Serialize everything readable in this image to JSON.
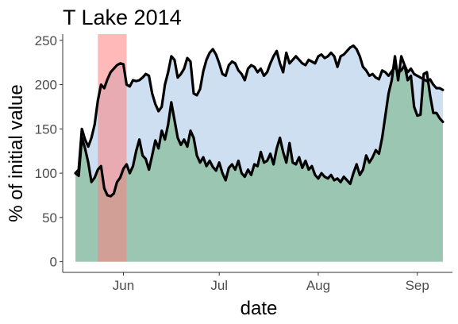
{
  "chart_data": {
    "type": "area",
    "title": "T Lake 2014",
    "xlabel": "date",
    "ylabel": "% of initial value",
    "x_ticks": [
      "Jun",
      "Jul",
      "Aug",
      "Sep"
    ],
    "y_ticks": [
      0,
      50,
      100,
      150,
      200,
      250
    ],
    "xlim": [
      "2014-05-13",
      "2014-09-12"
    ],
    "ylim": [
      -12,
      257
    ],
    "grid": false,
    "highlight": {
      "start": "2014-05-24",
      "end": "2014-06-02",
      "color": "#ff7f7f"
    },
    "fill_colors": {
      "lower_area": "#9bc6b1",
      "band": "#cddff0",
      "line": "#000000"
    },
    "series": [
      {
        "values": [
          [
            "2014-05-17",
            100
          ],
          [
            "2014-05-18",
            97
          ],
          [
            "2014-05-19",
            140
          ],
          [
            "2014-05-20",
            128
          ],
          [
            "2014-05-21",
            112
          ],
          [
            "2014-05-22",
            90
          ],
          [
            "2014-05-23",
            95
          ],
          [
            "2014-05-24",
            104
          ],
          [
            "2014-05-25",
            108
          ],
          [
            "2014-05-26",
            83
          ],
          [
            "2014-05-27",
            75
          ],
          [
            "2014-05-28",
            74
          ],
          [
            "2014-05-29",
            77
          ],
          [
            "2014-05-30",
            90
          ],
          [
            "2014-05-31",
            95
          ],
          [
            "2014-06-01",
            105
          ],
          [
            "2014-06-02",
            110
          ],
          [
            "2014-06-03",
            100
          ],
          [
            "2014-06-04",
            108
          ],
          [
            "2014-06-05",
            125
          ],
          [
            "2014-06-06",
            138
          ],
          [
            "2014-06-07",
            120
          ],
          [
            "2014-06-08",
            116
          ],
          [
            "2014-06-09",
            104
          ],
          [
            "2014-06-10",
            120
          ],
          [
            "2014-06-11",
            137
          ],
          [
            "2014-06-12",
            128
          ],
          [
            "2014-06-13",
            148
          ],
          [
            "2014-06-14",
            138
          ],
          [
            "2014-06-15",
            155
          ],
          [
            "2014-06-16",
            180
          ],
          [
            "2014-06-17",
            160
          ],
          [
            "2014-06-18",
            140
          ],
          [
            "2014-06-19",
            132
          ],
          [
            "2014-06-20",
            138
          ],
          [
            "2014-06-21",
            130
          ],
          [
            "2014-06-22",
            148
          ],
          [
            "2014-06-23",
            140
          ],
          [
            "2014-06-24",
            120
          ],
          [
            "2014-06-25",
            112
          ],
          [
            "2014-06-26",
            118
          ],
          [
            "2014-06-27",
            108
          ],
          [
            "2014-06-28",
            114
          ],
          [
            "2014-06-29",
            107
          ],
          [
            "2014-06-30",
            103
          ],
          [
            "2014-07-01",
            112
          ],
          [
            "2014-07-02",
            100
          ],
          [
            "2014-07-03",
            92
          ],
          [
            "2014-07-04",
            106
          ],
          [
            "2014-07-05",
            110
          ],
          [
            "2014-07-06",
            104
          ],
          [
            "2014-07-07",
            114
          ],
          [
            "2014-07-08",
            100
          ],
          [
            "2014-07-09",
            96
          ],
          [
            "2014-07-10",
            104
          ],
          [
            "2014-07-11",
            98
          ],
          [
            "2014-07-12",
            110
          ],
          [
            "2014-07-13",
            108
          ],
          [
            "2014-07-14",
            124
          ],
          [
            "2014-07-15",
            112
          ],
          [
            "2014-07-16",
            114
          ],
          [
            "2014-07-17",
            122
          ],
          [
            "2014-07-18",
            110
          ],
          [
            "2014-07-19",
            128
          ],
          [
            "2014-07-20",
            140
          ],
          [
            "2014-07-21",
            124
          ],
          [
            "2014-07-22",
            112
          ],
          [
            "2014-07-23",
            134
          ],
          [
            "2014-07-24",
            112
          ],
          [
            "2014-07-25",
            110
          ],
          [
            "2014-07-26",
            118
          ],
          [
            "2014-07-27",
            106
          ],
          [
            "2014-07-28",
            114
          ],
          [
            "2014-07-29",
            104
          ],
          [
            "2014-07-30",
            108
          ],
          [
            "2014-07-31",
            98
          ],
          [
            "2014-08-01",
            94
          ],
          [
            "2014-08-02",
            100
          ],
          [
            "2014-08-03",
            96
          ],
          [
            "2014-08-04",
            94
          ],
          [
            "2014-08-05",
            98
          ],
          [
            "2014-08-06",
            92
          ],
          [
            "2014-08-07",
            94
          ],
          [
            "2014-08-08",
            90
          ],
          [
            "2014-08-09",
            96
          ],
          [
            "2014-08-10",
            92
          ],
          [
            "2014-08-11",
            88
          ],
          [
            "2014-08-12",
            100
          ],
          [
            "2014-08-13",
            110
          ],
          [
            "2014-08-14",
            98
          ],
          [
            "2014-08-15",
            104
          ],
          [
            "2014-08-16",
            120
          ],
          [
            "2014-08-17",
            112
          ],
          [
            "2014-08-18",
            118
          ],
          [
            "2014-08-19",
            126
          ],
          [
            "2014-08-20",
            122
          ],
          [
            "2014-08-21",
            140
          ],
          [
            "2014-08-22",
            165
          ],
          [
            "2014-08-23",
            190
          ],
          [
            "2014-08-24",
            205
          ],
          [
            "2014-08-25",
            232
          ],
          [
            "2014-08-26",
            205
          ],
          [
            "2014-08-27",
            232
          ],
          [
            "2014-08-28",
            222
          ],
          [
            "2014-08-29",
            205
          ],
          [
            "2014-08-30",
            210
          ],
          [
            "2014-08-31",
            175
          ],
          [
            "2014-09-01",
            165
          ],
          [
            "2014-09-02",
            166
          ],
          [
            "2014-09-03",
            212
          ],
          [
            "2014-09-04",
            214
          ],
          [
            "2014-09-05",
            188
          ],
          [
            "2014-09-06",
            168
          ],
          [
            "2014-09-07",
            168
          ],
          [
            "2014-09-08",
            162
          ],
          [
            "2014-09-09",
            158
          ]
        ]
      },
      {
        "values": [
          [
            "2014-05-17",
            100
          ],
          [
            "2014-05-18",
            104
          ],
          [
            "2014-05-19",
            150
          ],
          [
            "2014-05-20",
            138
          ],
          [
            "2014-05-21",
            130
          ],
          [
            "2014-05-22",
            140
          ],
          [
            "2014-05-23",
            155
          ],
          [
            "2014-05-24",
            182
          ],
          [
            "2014-05-25",
            200
          ],
          [
            "2014-05-26",
            196
          ],
          [
            "2014-05-27",
            206
          ],
          [
            "2014-05-28",
            214
          ],
          [
            "2014-05-29",
            218
          ],
          [
            "2014-05-30",
            222
          ],
          [
            "2014-05-31",
            224
          ],
          [
            "2014-06-01",
            223
          ],
          [
            "2014-06-02",
            200
          ],
          [
            "2014-06-03",
            198
          ],
          [
            "2014-06-04",
            205
          ],
          [
            "2014-06-05",
            204
          ],
          [
            "2014-06-06",
            205
          ],
          [
            "2014-06-07",
            208
          ],
          [
            "2014-06-08",
            212
          ],
          [
            "2014-06-09",
            210
          ],
          [
            "2014-06-10",
            190
          ],
          [
            "2014-06-11",
            178
          ],
          [
            "2014-06-12",
            170
          ],
          [
            "2014-06-13",
            175
          ],
          [
            "2014-06-14",
            200
          ],
          [
            "2014-06-15",
            214
          ],
          [
            "2014-06-16",
            232
          ],
          [
            "2014-06-17",
            228
          ],
          [
            "2014-06-18",
            208
          ],
          [
            "2014-06-19",
            212
          ],
          [
            "2014-06-20",
            218
          ],
          [
            "2014-06-21",
            230
          ],
          [
            "2014-06-22",
            226
          ],
          [
            "2014-06-23",
            190
          ],
          [
            "2014-06-24",
            188
          ],
          [
            "2014-06-25",
            195
          ],
          [
            "2014-06-26",
            215
          ],
          [
            "2014-06-27",
            228
          ],
          [
            "2014-06-28",
            236
          ],
          [
            "2014-06-29",
            240
          ],
          [
            "2014-06-30",
            234
          ],
          [
            "2014-07-01",
            224
          ],
          [
            "2014-07-02",
            212
          ],
          [
            "2014-07-03",
            210
          ],
          [
            "2014-07-04",
            222
          ],
          [
            "2014-07-05",
            226
          ],
          [
            "2014-07-06",
            224
          ],
          [
            "2014-07-07",
            216
          ],
          [
            "2014-07-08",
            212
          ],
          [
            "2014-07-09",
            205
          ],
          [
            "2014-07-10",
            218
          ],
          [
            "2014-07-11",
            222
          ],
          [
            "2014-07-12",
            220
          ],
          [
            "2014-07-13",
            214
          ],
          [
            "2014-07-14",
            218
          ],
          [
            "2014-07-15",
            210
          ],
          [
            "2014-07-16",
            214
          ],
          [
            "2014-07-17",
            224
          ],
          [
            "2014-07-18",
            232
          ],
          [
            "2014-07-19",
            238
          ],
          [
            "2014-07-20",
            224
          ],
          [
            "2014-07-21",
            214
          ],
          [
            "2014-07-22",
            236
          ],
          [
            "2014-07-23",
            224
          ],
          [
            "2014-07-24",
            228
          ],
          [
            "2014-07-25",
            232
          ],
          [
            "2014-07-26",
            228
          ],
          [
            "2014-07-27",
            224
          ],
          [
            "2014-07-28",
            222
          ],
          [
            "2014-07-29",
            228
          ],
          [
            "2014-07-30",
            226
          ],
          [
            "2014-07-31",
            224
          ],
          [
            "2014-08-01",
            232
          ],
          [
            "2014-08-02",
            234
          ],
          [
            "2014-08-03",
            230
          ],
          [
            "2014-08-04",
            232
          ],
          [
            "2014-08-05",
            236
          ],
          [
            "2014-08-06",
            232
          ],
          [
            "2014-08-07",
            220
          ],
          [
            "2014-08-08",
            232
          ],
          [
            "2014-08-09",
            234
          ],
          [
            "2014-08-10",
            238
          ],
          [
            "2014-08-11",
            242
          ],
          [
            "2014-08-12",
            244
          ],
          [
            "2014-08-13",
            240
          ],
          [
            "2014-08-14",
            232
          ],
          [
            "2014-08-15",
            220
          ],
          [
            "2014-08-16",
            216
          ],
          [
            "2014-08-17",
            210
          ],
          [
            "2014-08-18",
            212
          ],
          [
            "2014-08-19",
            208
          ],
          [
            "2014-08-20",
            206
          ],
          [
            "2014-08-21",
            216
          ],
          [
            "2014-08-22",
            214
          ],
          [
            "2014-08-23",
            210
          ],
          [
            "2014-08-24",
            215
          ],
          [
            "2014-08-25",
            220
          ],
          [
            "2014-08-26",
            214
          ],
          [
            "2014-08-27",
            216
          ],
          [
            "2014-08-28",
            222
          ],
          [
            "2014-08-29",
            214
          ],
          [
            "2014-08-30",
            218
          ],
          [
            "2014-08-31",
            212
          ],
          [
            "2014-09-01",
            210
          ],
          [
            "2014-09-02",
            208
          ],
          [
            "2014-09-03",
            206
          ],
          [
            "2014-09-04",
            204
          ],
          [
            "2014-09-05",
            206
          ],
          [
            "2014-09-06",
            200
          ],
          [
            "2014-09-07",
            196
          ],
          [
            "2014-09-08",
            196
          ],
          [
            "2014-09-09",
            194
          ]
        ]
      }
    ]
  }
}
